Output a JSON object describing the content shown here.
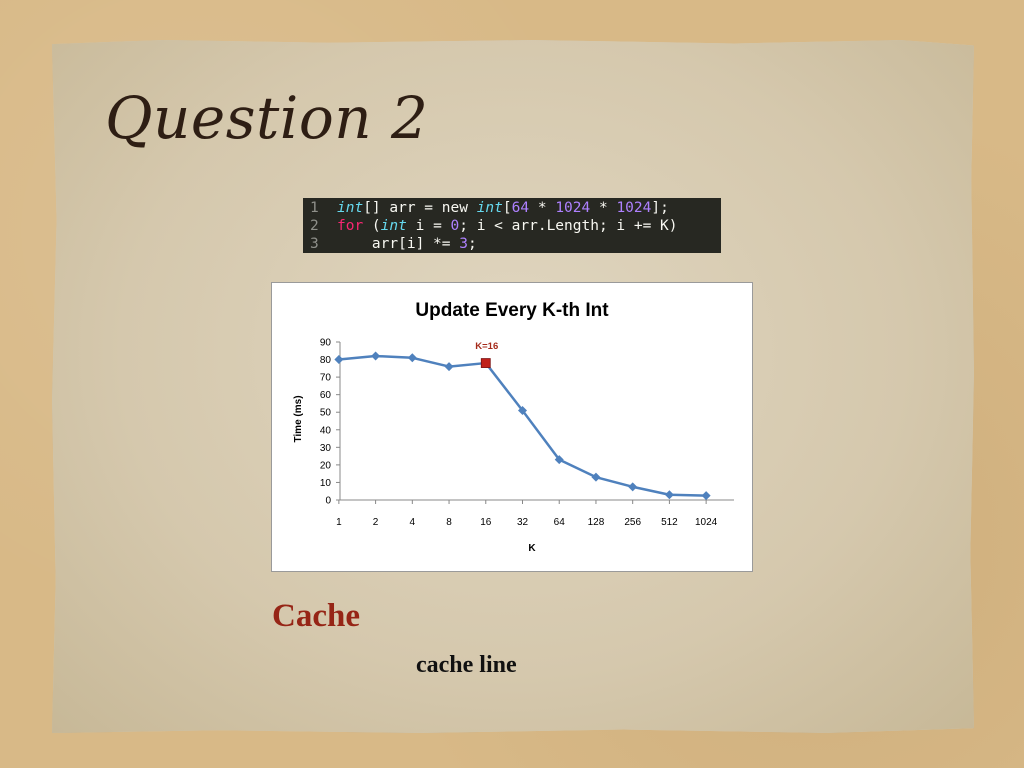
{
  "slide": {
    "title": "Question 2",
    "heading": "Cache",
    "subheading": "cache line"
  },
  "code": {
    "lines": [
      {
        "number": "1",
        "tokens": [
          {
            "t": "int",
            "c": "type"
          },
          {
            "t": "[] arr = new ",
            "c": "plain"
          },
          {
            "t": "int",
            "c": "type"
          },
          {
            "t": "[",
            "c": "plain"
          },
          {
            "t": "64",
            "c": "num"
          },
          {
            "t": " * ",
            "c": "plain"
          },
          {
            "t": "1024",
            "c": "num"
          },
          {
            "t": " * ",
            "c": "plain"
          },
          {
            "t": "1024",
            "c": "num"
          },
          {
            "t": "];",
            "c": "plain"
          }
        ]
      },
      {
        "number": "2",
        "tokens": [
          {
            "t": "for",
            "c": "kw"
          },
          {
            "t": " (",
            "c": "plain"
          },
          {
            "t": "int",
            "c": "type"
          },
          {
            "t": " i = ",
            "c": "plain"
          },
          {
            "t": "0",
            "c": "num"
          },
          {
            "t": "; i < arr.Length; i += K)",
            "c": "plain"
          }
        ]
      },
      {
        "number": "3",
        "tokens": [
          {
            "t": "    arr[i] *= ",
            "c": "plain"
          },
          {
            "t": "3",
            "c": "num"
          },
          {
            "t": ";",
            "c": "plain"
          }
        ]
      }
    ]
  },
  "chart_data": {
    "type": "line",
    "title": "Update Every K-th Int",
    "xlabel": "K",
    "ylabel": "Time (ms)",
    "categories": [
      "1",
      "2",
      "4",
      "8",
      "16",
      "32",
      "64",
      "128",
      "256",
      "512",
      "1024"
    ],
    "series": [
      {
        "values": [
          80,
          82,
          81,
          76,
          78,
          51,
          23,
          13,
          7.5,
          3,
          2.5
        ]
      }
    ],
    "highlight": {
      "index": 4,
      "label": "K=16"
    },
    "ylim": [
      0,
      90
    ],
    "yticks": [
      0,
      10,
      20,
      30,
      40,
      50,
      60,
      70,
      80,
      90
    ],
    "grid": false,
    "legend": "none",
    "colors": {
      "line": "#4f81bd",
      "highlight": "#c0201a",
      "highlight_label": "#a52a1a"
    }
  }
}
